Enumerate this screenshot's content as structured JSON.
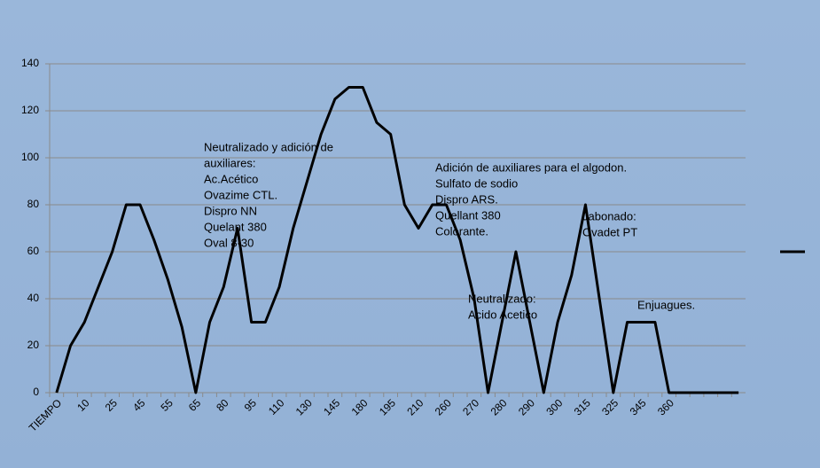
{
  "chart_data": {
    "type": "line",
    "color": "#000000",
    "categories": [
      "TIEMPO",
      null,
      "10",
      null,
      "25",
      null,
      "45",
      null,
      "55",
      null,
      "65",
      null,
      "80",
      null,
      "95",
      null,
      "110",
      null,
      "130",
      null,
      "145",
      null,
      "180",
      null,
      "195",
      null,
      "210",
      null,
      "260",
      null,
      "270",
      null,
      "280",
      null,
      "290",
      null,
      "300",
      null,
      "315",
      null,
      "325",
      null,
      "345",
      null,
      "360",
      null,
      null,
      null,
      null,
      null
    ],
    "values": [
      0,
      20,
      30,
      45,
      60,
      80,
      80,
      65,
      48,
      28,
      0,
      30,
      45,
      70,
      30,
      30,
      45,
      70,
      90,
      110,
      125,
      130,
      130,
      115,
      110,
      80,
      70,
      80,
      80,
      65,
      40,
      0,
      30,
      60,
      30,
      0,
      30,
      50,
      80,
      40,
      0,
      30,
      30,
      30,
      0,
      0,
      0,
      0,
      0,
      0
    ],
    "ylim": [
      0,
      140
    ],
    "yticks": [
      0,
      20,
      40,
      60,
      80,
      100,
      120,
      140
    ],
    "grid": true,
    "annotations": [
      [
        "Neutralizado y adición de",
        "auxiliares:",
        "Ac.Acético",
        "Ovazime CTL.",
        "Dispro NN",
        "Quelant 380",
        "Oval 8-30"
      ],
      [
        "Adición de auxiliares para el algodon.",
        "Sulfato de sodio",
        "Dispro ARS.",
        "Quellant 380",
        "Colorante."
      ],
      [
        "Neutralizado:",
        "Acido Acetico"
      ],
      [
        "Jabonado:",
        "Ovadet PT"
      ],
      [
        "Enjuagues."
      ]
    ]
  }
}
